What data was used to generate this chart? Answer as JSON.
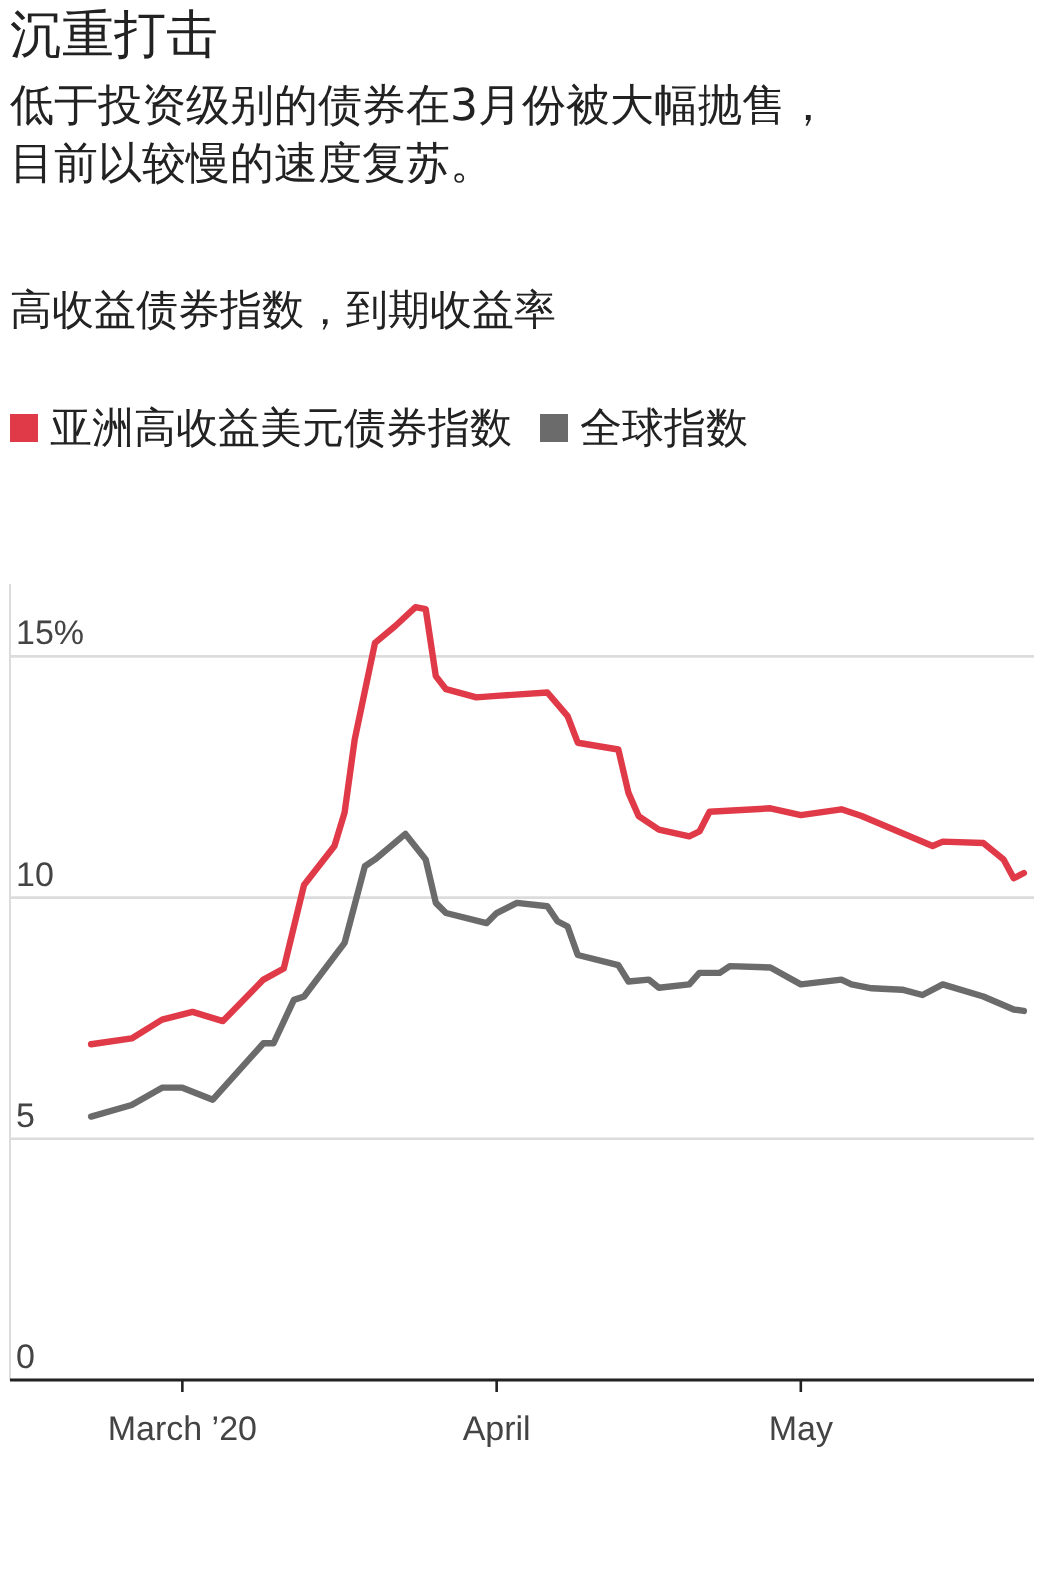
{
  "chart_data": {
    "type": "line",
    "title": "沉重打击",
    "subtitle": "低于投资级别的债券在3月份被大幅抛售，目前以较慢的速度复苏。",
    "annotations": [
      "高收益债券指数，到期收益率"
    ],
    "legend": "top",
    "grid": "y",
    "marker": "none",
    "line_style": "solid",
    "xlim": [
      "2020-02-13",
      "2020-05-24"
    ],
    "xticks": [
      {
        "value": "2020-03-01",
        "label": "March ’20"
      },
      {
        "value": "2020-04-01",
        "label": "April"
      },
      {
        "value": "2020-05-01",
        "label": "May"
      }
    ],
    "ylim": [
      0,
      16.5
    ],
    "yticks": [
      0,
      5,
      10,
      {
        "value": 15,
        "label": "15%"
      }
    ],
    "series": [
      {
        "name": "亚洲高收益美元债券指数",
        "color": "#e03a48",
        "x": [
          "2020-02-21",
          "2020-02-25",
          "2020-02-28",
          "2020-03-02",
          "2020-03-05",
          "2020-03-09",
          "2020-03-11",
          "2020-03-13",
          "2020-03-16",
          "2020-03-17",
          "2020-03-18",
          "2020-03-20",
          "2020-03-22",
          "2020-03-24",
          "2020-03-25",
          "2020-03-26",
          "2020-03-27",
          "2020-03-30",
          "2020-04-01",
          "2020-04-06",
          "2020-04-08",
          "2020-04-09",
          "2020-04-13",
          "2020-04-14",
          "2020-04-15",
          "2020-04-17",
          "2020-04-20",
          "2020-04-21",
          "2020-04-22",
          "2020-04-28",
          "2020-05-01",
          "2020-05-05",
          "2020-05-07",
          "2020-05-14",
          "2020-05-15",
          "2020-05-19",
          "2020-05-21",
          "2020-05-22",
          "2020-05-23"
        ],
        "values": [
          6.96,
          7.08,
          7.47,
          7.63,
          7.44,
          8.3,
          8.53,
          10.26,
          11.07,
          11.76,
          13.28,
          15.28,
          15.63,
          16.02,
          15.98,
          14.59,
          14.32,
          14.15,
          14.18,
          14.25,
          13.76,
          13.21,
          13.07,
          12.17,
          11.69,
          11.41,
          11.27,
          11.37,
          11.78,
          11.85,
          11.71,
          11.83,
          11.69,
          11.07,
          11.16,
          11.13,
          10.79,
          10.4,
          10.51
        ]
      },
      {
        "name": "全球指数",
        "color": "#6b6b6b",
        "x": [
          "2020-02-21",
          "2020-02-25",
          "2020-02-28",
          "2020-03-01",
          "2020-03-04",
          "2020-03-09",
          "2020-03-10",
          "2020-03-12",
          "2020-03-13",
          "2020-03-17",
          "2020-03-19",
          "2020-03-20",
          "2020-03-23",
          "2020-03-25",
          "2020-03-26",
          "2020-03-27",
          "2020-03-31",
          "2020-04-01",
          "2020-04-03",
          "2020-04-06",
          "2020-04-07",
          "2020-04-08",
          "2020-04-09",
          "2020-04-13",
          "2020-04-14",
          "2020-04-16",
          "2020-04-17",
          "2020-04-20",
          "2020-04-21",
          "2020-04-23",
          "2020-04-24",
          "2020-04-28",
          "2020-05-01",
          "2020-05-05",
          "2020-05-06",
          "2020-05-08",
          "2020-05-11",
          "2020-05-13",
          "2020-05-15",
          "2020-05-19",
          "2020-05-22",
          "2020-05-23"
        ],
        "values": [
          5.46,
          5.7,
          6.06,
          6.06,
          5.81,
          6.98,
          6.98,
          7.88,
          7.95,
          9.06,
          10.65,
          10.79,
          11.32,
          10.79,
          9.89,
          9.68,
          9.47,
          9.68,
          9.89,
          9.82,
          9.51,
          9.4,
          8.81,
          8.6,
          8.26,
          8.3,
          8.13,
          8.2,
          8.44,
          8.44,
          8.58,
          8.55,
          8.2,
          8.3,
          8.2,
          8.12,
          8.09,
          7.98,
          8.2,
          7.95,
          7.68,
          7.65
        ]
      }
    ]
  }
}
